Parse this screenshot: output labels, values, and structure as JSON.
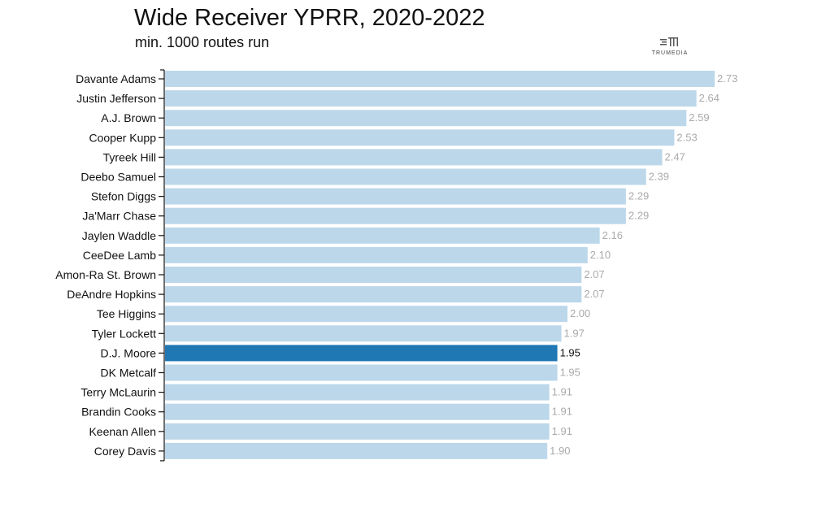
{
  "header": {
    "title": "Wide Receiver YPRR, 2020-2022",
    "subtitle": "min. 1000 routes run"
  },
  "logo": {
    "text": "TRUMEDIA",
    "icon": "trumedia-logo-icon"
  },
  "chart_data": {
    "type": "bar",
    "orientation": "horizontal",
    "title": "Wide Receiver YPRR, 2020-2022",
    "subtitle": "min. 1000 routes run",
    "categories": [
      "Davante Adams",
      "Justin Jefferson",
      "A.J. Brown",
      "Cooper Kupp",
      "Tyreek Hill",
      "Deebo Samuel",
      "Stefon Diggs",
      "Ja'Marr Chase",
      "Jaylen Waddle",
      "CeeDee Lamb",
      "Amon-Ra St. Brown",
      "DeAndre Hopkins",
      "Tee Higgins",
      "Tyler Lockett",
      "D.J. Moore",
      "DK Metcalf",
      "Terry McLaurin",
      "Brandin Cooks",
      "Keenan Allen",
      "Corey Davis"
    ],
    "values": [
      2.73,
      2.64,
      2.59,
      2.53,
      2.47,
      2.39,
      2.29,
      2.29,
      2.16,
      2.1,
      2.07,
      2.07,
      2.0,
      1.97,
      1.95,
      1.95,
      1.91,
      1.91,
      1.91,
      1.9
    ],
    "value_labels": [
      "2.73",
      "2.64",
      "2.59",
      "2.53",
      "2.47",
      "2.39",
      "2.29",
      "2.29",
      "2.16",
      "2.10",
      "2.07",
      "2.07",
      "2.00",
      "1.97",
      "1.95",
      "1.95",
      "1.91",
      "1.91",
      "1.91",
      "1.90"
    ],
    "highlight": "D.J. Moore",
    "xlim": [
      0,
      2.73
    ],
    "xlabel": "",
    "ylabel": "",
    "grid": false,
    "colors": {
      "bar": "#bcd7ea",
      "highlight_bar": "#1f77b4",
      "value_label": "#aaaaaa",
      "highlight_value_label": "#111111",
      "axis": "#111111",
      "category_label": "#111111"
    }
  }
}
